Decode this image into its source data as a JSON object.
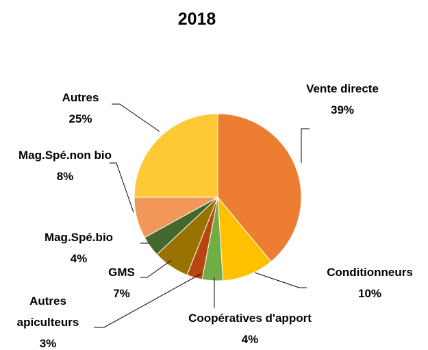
{
  "chart_data": {
    "type": "pie",
    "title": "2018",
    "categories": [
      "Vente directe",
      "Conditionneurs",
      "Coopératives d'apport",
      "Autres apiculteurs",
      "GMS",
      "Mag.Spé.bio",
      "Mag.Spé.non bio",
      "Autres"
    ],
    "values": [
      39,
      10,
      4,
      3,
      7,
      4,
      8,
      25
    ],
    "value_labels": [
      "39%",
      "10%",
      "4%",
      "3%",
      "7%",
      "4%",
      "8%",
      "25%"
    ],
    "colors": [
      "#ED7D31",
      "#FFC000",
      "#70AD47",
      "#B8470F",
      "#997300",
      "#43682B",
      "#F1975A",
      "#FFC935"
    ]
  }
}
